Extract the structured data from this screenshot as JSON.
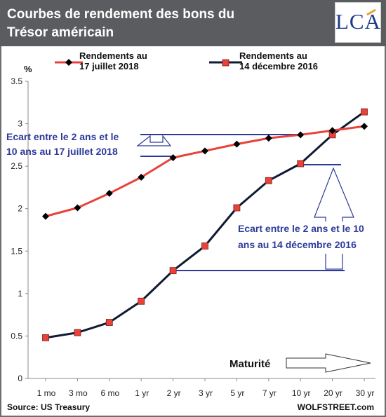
{
  "header": {
    "title_line1": "Courbes de rendement des bons du",
    "title_line2": "Trésor américain",
    "logo": "LCA"
  },
  "colors": {
    "header_bg": "#5a5c5f",
    "series_2018": "#e8423a",
    "series_2016": "#0f1a33",
    "marker_2018": "#000000",
    "marker_2016": "#e8423a",
    "annotation": "#2e3a9a"
  },
  "chart_data": {
    "type": "line",
    "ylabel": "%",
    "ylim": [
      0,
      3.5
    ],
    "yticks": [
      "0",
      "0.5",
      "1",
      "1.5",
      "2",
      "2.5",
      "3",
      "3.5"
    ],
    "yticks_values": [
      0,
      0.5,
      1,
      1.5,
      2,
      2.5,
      3,
      3.5
    ],
    "categories": [
      "1 mo",
      "3 mo",
      "6 mo",
      "1 yr",
      "2 yr",
      "3 yr",
      "5 yr",
      "7 yr",
      "10 yr",
      "20 yr",
      "30 yr"
    ],
    "xlabel": "Maturité",
    "grid": false,
    "legend_position": "top",
    "series": [
      {
        "name": "Rendements au 17 juillet 2018",
        "name_line1": "Rendements au",
        "name_line2": "17 juillet 2018",
        "marker": "diamond",
        "values": [
          1.91,
          2.01,
          2.18,
          2.37,
          2.6,
          2.68,
          2.76,
          2.83,
          2.87,
          2.92,
          2.97
        ]
      },
      {
        "name": "Rendements au 14 décembre 2016",
        "name_line1": "Rendements au",
        "name_line2": "14 décembre 2016",
        "marker": "square",
        "values": [
          0.48,
          0.54,
          0.66,
          0.91,
          1.27,
          1.56,
          2.01,
          2.33,
          2.53,
          2.87,
          3.14
        ]
      }
    ],
    "annotations": [
      {
        "line1": "Ecart entre le 2 ans et le",
        "line2": "10 ans au 17 juillet 2018"
      },
      {
        "line1": "Ecart entre le 2 ans et le 10",
        "line2": "ans au 14 décembre 2016"
      }
    ]
  },
  "footer": {
    "source": "Source: US Treasury",
    "credit": "WOLFSTREET.com"
  }
}
